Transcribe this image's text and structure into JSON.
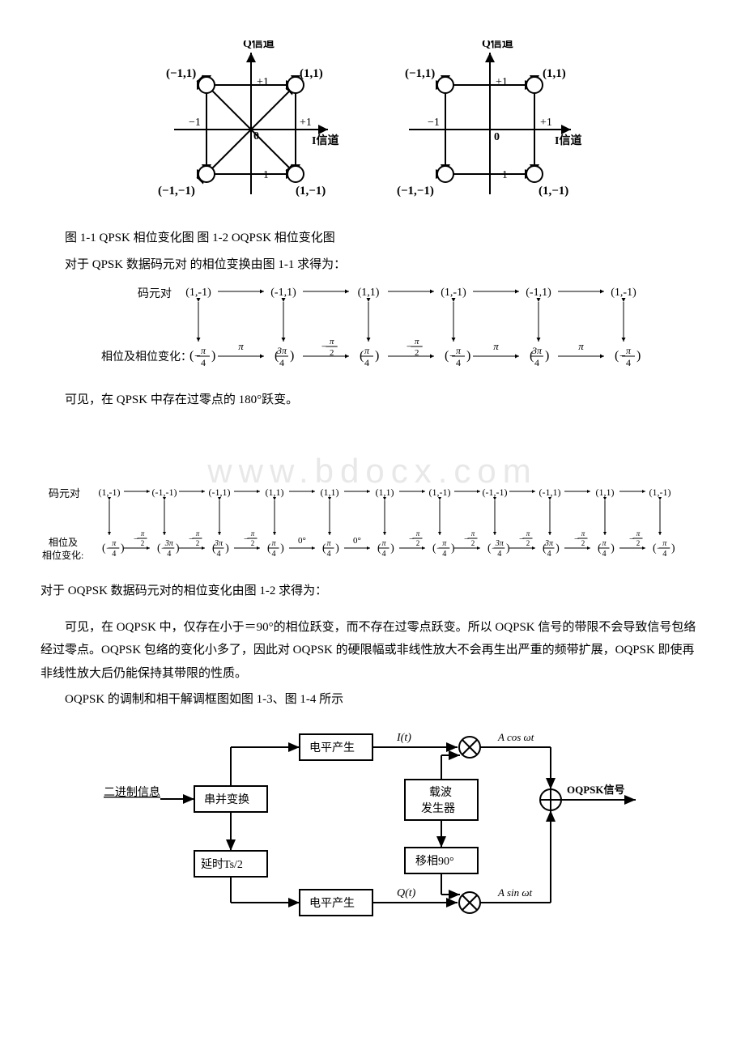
{
  "constellation": {
    "left_title": "Q信道",
    "right_title": "Q信道",
    "x_axis_left": "I信道",
    "x_axis_right": "I信道",
    "points": [
      "(-1,1)",
      "(1,1)",
      "(-1,-1)",
      "(1,-1)"
    ],
    "ticks": [
      "+1",
      "-1",
      "+1",
      "-1",
      "0"
    ],
    "caption": "图 1-1 QPSK 相位变化图 图 1-2 OQPSK 相位变化图",
    "node_radius": 10,
    "stroke": "#000000",
    "font_size": 14
  },
  "para1": "对于 QPSK 数据码元对 的相位变换由图 1-1 求得为：",
  "qpsk_seq": {
    "pair_label": "码元对",
    "phase_label": "相位及相位变化：",
    "pairs": [
      "(1,-1)",
      "(-1,1)",
      "(1,1)",
      "(1,-1)",
      "(-1,1)",
      "(1,-1)"
    ],
    "phases": [
      "(-\\frac{\\pi}{4})",
      "(\\frac{3\\pi}{4})",
      "(\\frac{\\pi}{4})",
      "(-\\frac{\\pi}{4})",
      "(\\frac{3\\pi}{4})",
      "(-\\frac{\\pi}{4})"
    ],
    "deltas": [
      "\\pi",
      "-\\frac{\\pi}{2}",
      "-\\frac{\\pi}{2}",
      "\\pi",
      "\\pi"
    ]
  },
  "para2": "可见，在 QPSK 中存在过零点的 180°跃变。",
  "watermark": "www.bdocx.com",
  "oqpsk_seq": {
    "pair_label": "码元对",
    "phase_label_1": "相位及",
    "phase_label_2": "相位变化:",
    "pairs": [
      "(1,-1)",
      "(-1,-1)",
      "(-1,1)",
      "(1,1)",
      "(1,1)",
      "(1,1)",
      "(1,-1)",
      "(-1,-1)",
      "(-1,1)",
      "(1,1)",
      "(1,-1)"
    ],
    "phases": [
      "(-\\frac{\\pi}{4})",
      "(-\\frac{3\\pi}{4})",
      "(\\frac{3\\pi}{4})",
      "(\\frac{\\pi}{4})",
      "(\\frac{\\pi}{4})",
      "(\\frac{\\pi}{4})",
      "(-\\frac{\\pi}{4})",
      "(-\\frac{3\\pi}{4})",
      "(\\frac{3\\pi}{4})",
      "(\\frac{\\pi}{4})",
      "(-\\frac{\\pi}{4})"
    ],
    "deltas": [
      "-\\frac{\\pi}{2}",
      "-\\frac{\\pi}{2}",
      "-\\frac{\\pi}{2}",
      "0°",
      "0°",
      "-\\frac{\\pi}{2}",
      "-\\frac{\\pi}{2}",
      "-\\frac{\\pi}{2}",
      "-\\frac{\\pi}{2}",
      "-\\frac{\\pi}{2}"
    ]
  },
  "para3": "对于 OQPSK 数据码元对的相位变化由图 1-2 求得为：",
  "para4": "可见，在 OQPSK 中，仅存在小于＝90°的相位跃变，而不存在过零点跃变。所以 OQPSK 信号的带限不会导致信号包络经过零点。OQPSK 包络的变化小多了，因此对 OQPSK 的硬限幅或非线性放大不会再生出严重的频带扩展，OQPSK 即使再非线性放大后仍能保持其带限的性质。",
  "para5": "OQPSK 的调制和相干解调框图如图 1-3、图 1-4 所示",
  "block": {
    "input": "二进制信息",
    "sp": "串并变换",
    "level1": "电平产生",
    "level2": "电平产生",
    "delay": "延时Ts/2",
    "carrier1": "载波",
    "carrier2": "发生器",
    "shift": "移相90°",
    "It": "I(t)",
    "Qt": "Q(t)",
    "cos": "Acosωt",
    "sin": "Asinωt",
    "out_label": "OQPSK信号",
    "box_stroke": "#000000",
    "box_fill": "#ffffff",
    "font_size": 14
  }
}
